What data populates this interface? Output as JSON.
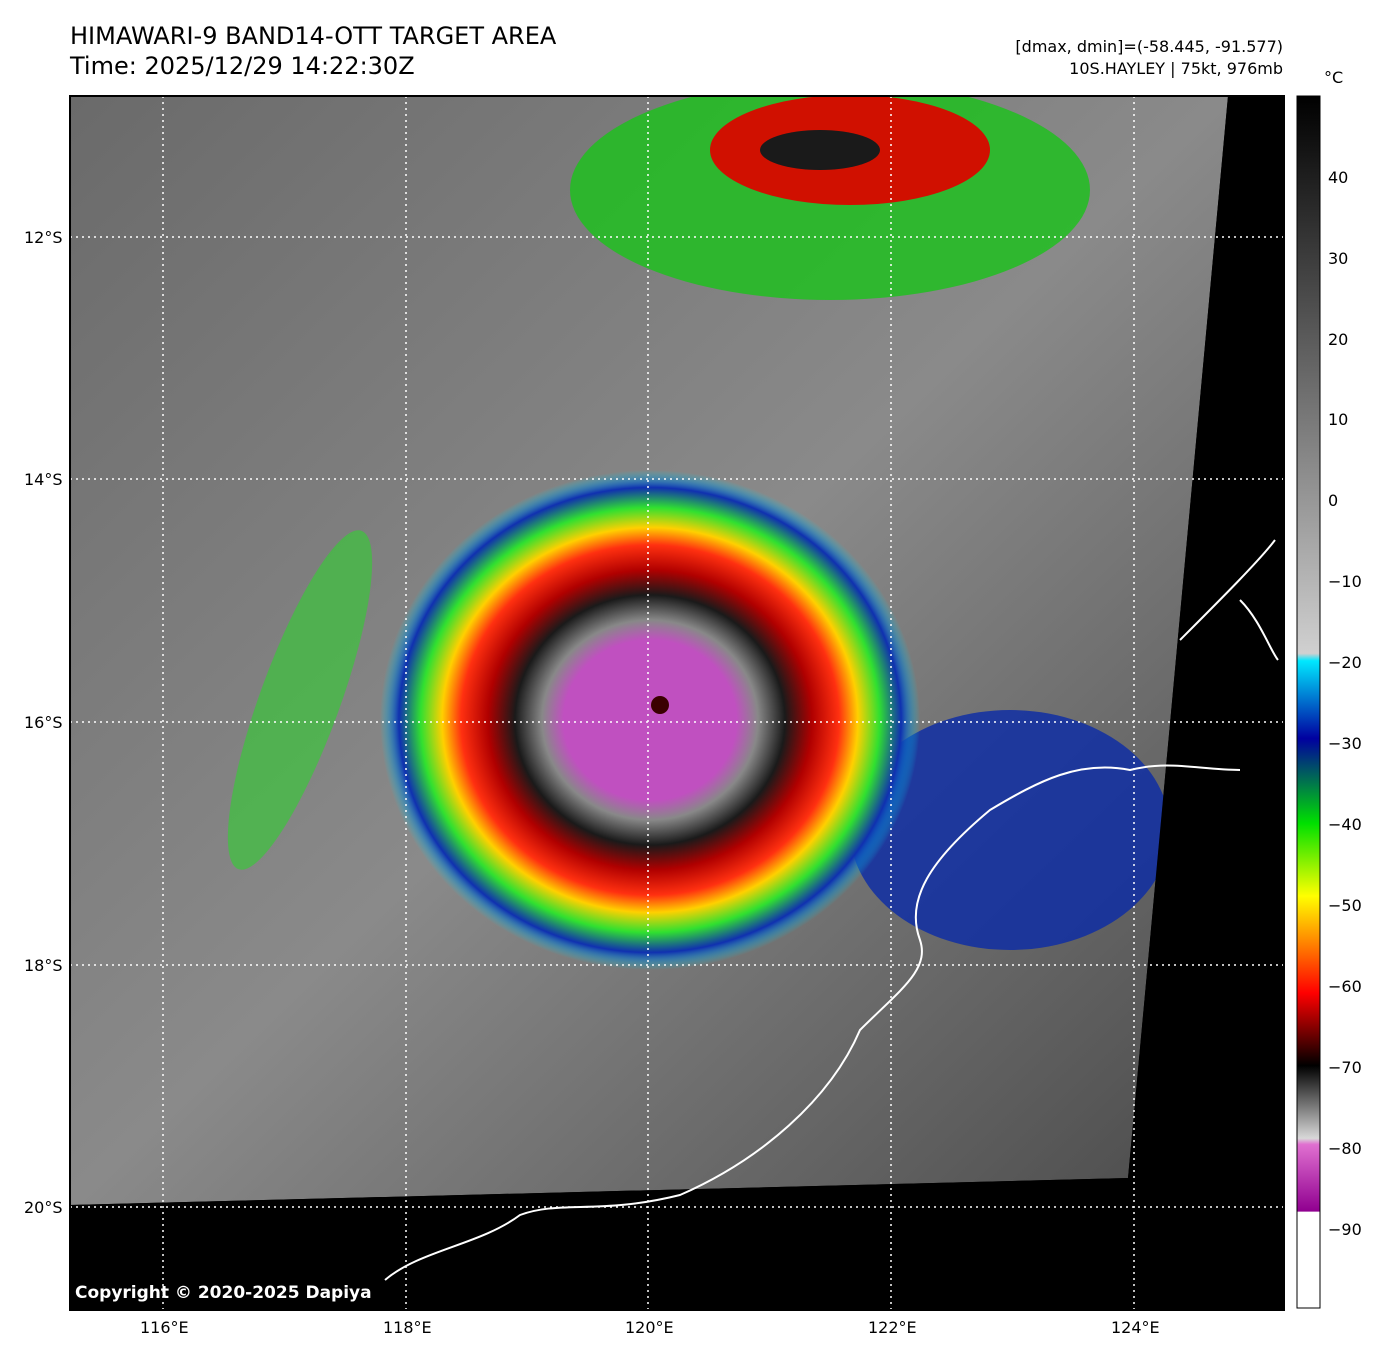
{
  "title_line1": "HIMAWARI-9 BAND14-OTT TARGET AREA",
  "title_line2": "Time: 2025/12/29 14:22:30Z",
  "info_line1": "[dmax, dmin]=(-58.445, -91.577)",
  "info_line2": "10S.HAYLEY | 75kt, 976mb",
  "colorbar_unit": "°C",
  "colorbar_ticks": [
    "40",
    "30",
    "20",
    "10",
    "0",
    "−10",
    "−20",
    "−30",
    "−40",
    "−50",
    "−60",
    "−70",
    "−80",
    "−90"
  ],
  "lat_ticks": [
    "12°S",
    "14°S",
    "16°S",
    "18°S",
    "20°S"
  ],
  "lon_ticks": [
    "116°E",
    "118°E",
    "120°E",
    "122°E",
    "124°E"
  ],
  "copyright": "Copyright © 2020-2025 Dapiya",
  "colors": {
    "cold_magenta": "#c84bc8",
    "red_ring": "#d00000",
    "green_bands": "#20d020",
    "blue_fringe": "#0a2aa8",
    "cyan_fringe": "#00d8f0",
    "background": "#000000",
    "coastline": "#ffffff"
  }
}
